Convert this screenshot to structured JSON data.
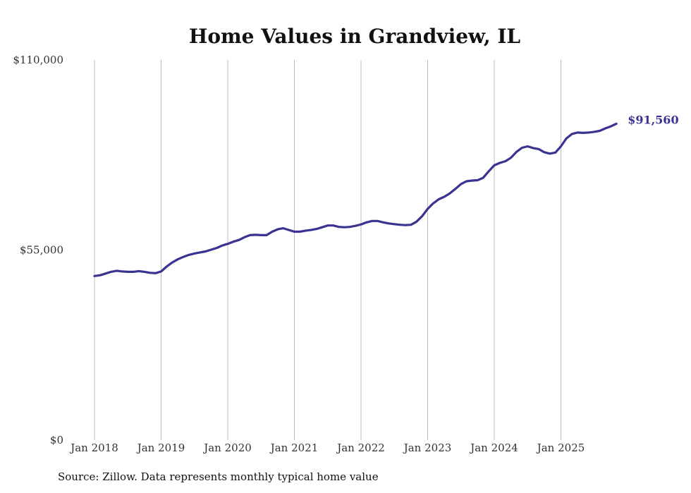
{
  "chart_data": {
    "type": "line",
    "title": "Home Values in Grandview, IL",
    "xlabel": "",
    "ylabel": "",
    "ylim": [
      0,
      110000
    ],
    "y_ticks": [
      {
        "value": 0,
        "label": "$0"
      },
      {
        "value": 55000,
        "label": "$55,000"
      },
      {
        "value": 110000,
        "label": "$110,000"
      }
    ],
    "x_ticks": [
      {
        "value": 2018,
        "label": "Jan 2018"
      },
      {
        "value": 2019,
        "label": "Jan 2019"
      },
      {
        "value": 2020,
        "label": "Jan 2020"
      },
      {
        "value": 2021,
        "label": "Jan 2021"
      },
      {
        "value": 2022,
        "label": "Jan 2022"
      },
      {
        "value": 2023,
        "label": "Jan 2023"
      },
      {
        "value": 2024,
        "label": "Jan 2024"
      },
      {
        "value": 2025,
        "label": "Jan 2025"
      }
    ],
    "xlim": [
      2018,
      2025.833
    ],
    "grid": "vertical",
    "legend": "none",
    "series": [
      {
        "color": "#3a3391",
        "points": [
          [
            2018.0,
            47500
          ],
          [
            2018.083,
            47700
          ],
          [
            2018.167,
            48200
          ],
          [
            2018.25,
            48700
          ],
          [
            2018.333,
            49000
          ],
          [
            2018.417,
            48800
          ],
          [
            2018.5,
            48700
          ],
          [
            2018.583,
            48700
          ],
          [
            2018.667,
            48900
          ],
          [
            2018.75,
            48700
          ],
          [
            2018.833,
            48400
          ],
          [
            2018.917,
            48300
          ],
          [
            2019.0,
            48800
          ],
          [
            2019.083,
            50200
          ],
          [
            2019.167,
            51400
          ],
          [
            2019.25,
            52300
          ],
          [
            2019.333,
            53000
          ],
          [
            2019.417,
            53600
          ],
          [
            2019.5,
            54000
          ],
          [
            2019.583,
            54300
          ],
          [
            2019.667,
            54600
          ],
          [
            2019.75,
            55100
          ],
          [
            2019.833,
            55600
          ],
          [
            2019.917,
            56300
          ],
          [
            2020.0,
            56800
          ],
          [
            2020.083,
            57400
          ],
          [
            2020.167,
            57900
          ],
          [
            2020.25,
            58700
          ],
          [
            2020.333,
            59300
          ],
          [
            2020.417,
            59400
          ],
          [
            2020.5,
            59300
          ],
          [
            2020.583,
            59300
          ],
          [
            2020.667,
            60300
          ],
          [
            2020.75,
            61000
          ],
          [
            2020.833,
            61300
          ],
          [
            2020.917,
            60800
          ],
          [
            2021.0,
            60300
          ],
          [
            2021.083,
            60300
          ],
          [
            2021.167,
            60600
          ],
          [
            2021.25,
            60800
          ],
          [
            2021.333,
            61100
          ],
          [
            2021.417,
            61600
          ],
          [
            2021.5,
            62100
          ],
          [
            2021.583,
            62100
          ],
          [
            2021.667,
            61700
          ],
          [
            2021.75,
            61600
          ],
          [
            2021.833,
            61700
          ],
          [
            2021.917,
            62000
          ],
          [
            2022.0,
            62400
          ],
          [
            2022.083,
            63000
          ],
          [
            2022.167,
            63400
          ],
          [
            2022.25,
            63400
          ],
          [
            2022.333,
            63000
          ],
          [
            2022.417,
            62700
          ],
          [
            2022.5,
            62500
          ],
          [
            2022.583,
            62300
          ],
          [
            2022.667,
            62200
          ],
          [
            2022.75,
            62300
          ],
          [
            2022.833,
            63200
          ],
          [
            2022.917,
            64800
          ],
          [
            2023.0,
            66900
          ],
          [
            2023.083,
            68500
          ],
          [
            2023.167,
            69700
          ],
          [
            2023.25,
            70400
          ],
          [
            2023.333,
            71400
          ],
          [
            2023.417,
            72700
          ],
          [
            2023.5,
            74100
          ],
          [
            2023.583,
            74900
          ],
          [
            2023.667,
            75100
          ],
          [
            2023.75,
            75200
          ],
          [
            2023.833,
            75900
          ],
          [
            2023.917,
            77800
          ],
          [
            2024.0,
            79500
          ],
          [
            2024.083,
            80200
          ],
          [
            2024.167,
            80700
          ],
          [
            2024.25,
            81700
          ],
          [
            2024.333,
            83400
          ],
          [
            2024.417,
            84600
          ],
          [
            2024.5,
            85000
          ],
          [
            2024.583,
            84500
          ],
          [
            2024.667,
            84200
          ],
          [
            2024.75,
            83300
          ],
          [
            2024.833,
            82900
          ],
          [
            2024.917,
            83200
          ],
          [
            2025.0,
            85000
          ],
          [
            2025.083,
            87300
          ],
          [
            2025.167,
            88600
          ],
          [
            2025.25,
            89000
          ],
          [
            2025.333,
            88900
          ],
          [
            2025.417,
            89000
          ],
          [
            2025.5,
            89200
          ],
          [
            2025.583,
            89500
          ],
          [
            2025.667,
            90200
          ],
          [
            2025.75,
            90800
          ],
          [
            2025.833,
            91560
          ]
        ],
        "end_label": "$91,560"
      }
    ]
  },
  "source_note": "Source: Zillow. Data represents monthly typical home value"
}
